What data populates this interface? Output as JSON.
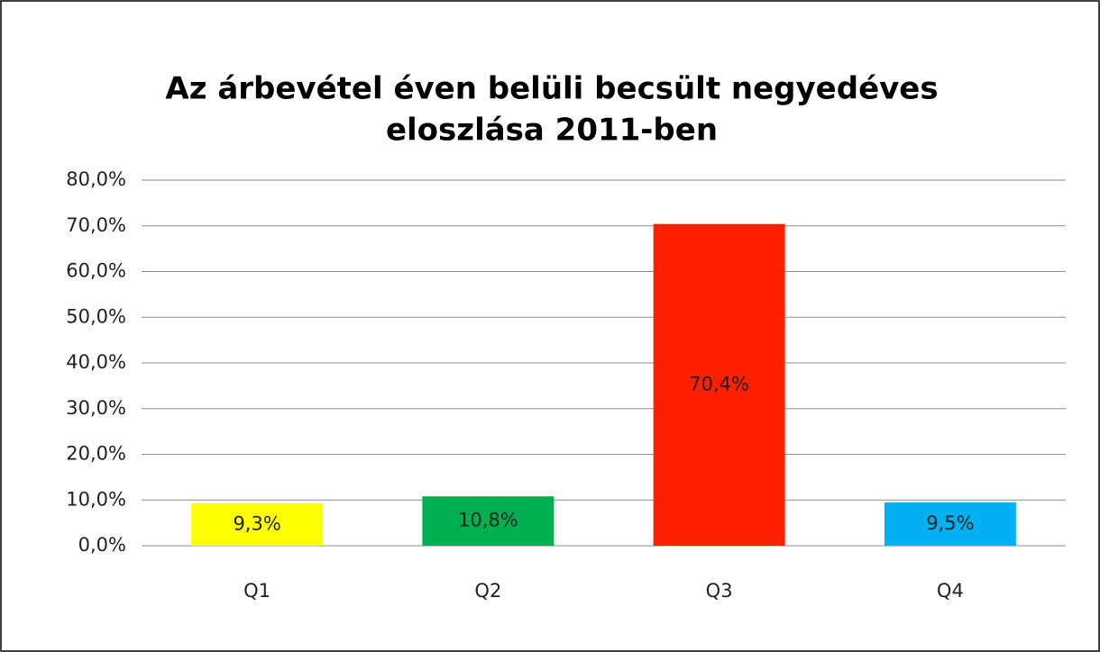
{
  "chart_data": {
    "type": "bar",
    "title": [
      "Az árbevétel éven belüli becsült negyedéves",
      "eloszlása 2011-ben"
    ],
    "categories": [
      "Q1",
      "Q2",
      "Q3",
      "Q4"
    ],
    "values": [
      9.3,
      10.8,
      70.4,
      9.5
    ],
    "value_labels": [
      "9,3%",
      "10,8%",
      "70,4%",
      "9,5%"
    ],
    "colors": [
      "#ffff00",
      "#00b050",
      "#ff2000",
      "#00b0f0"
    ],
    "ylim": [
      0,
      80
    ],
    "yticks": [
      {
        "value": 0,
        "label": "0,0%"
      },
      {
        "value": 10,
        "label": "10,0%"
      },
      {
        "value": 20,
        "label": "20,0%"
      },
      {
        "value": 30,
        "label": "30,0%"
      },
      {
        "value": 40,
        "label": "40,0%"
      },
      {
        "value": 50,
        "label": "50,0%"
      },
      {
        "value": 60,
        "label": "60,0%"
      },
      {
        "value": 70,
        "label": "70,0%"
      },
      {
        "value": 80,
        "label": "80,0%"
      }
    ],
    "grid": true
  }
}
